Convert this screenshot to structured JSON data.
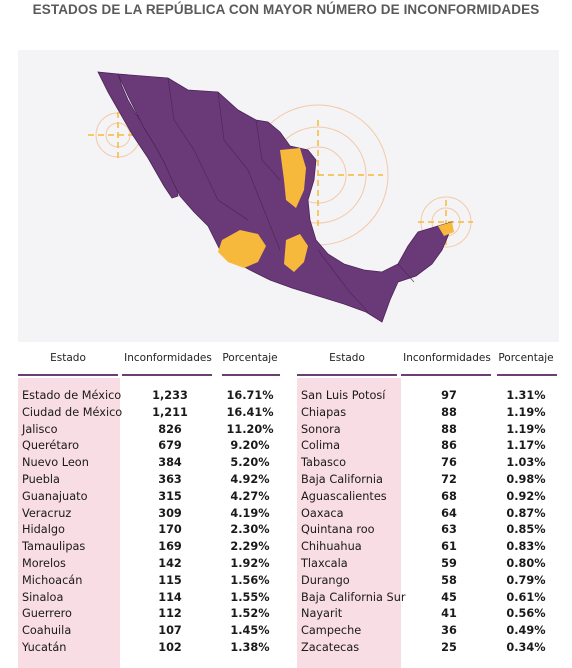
{
  "title": "ESTADOS DE LA REPÚBLICA CON MAYOR NÚMERO DE INCONFORMIDADES",
  "colors": {
    "map_purple": "#6a3a78",
    "map_purple_dark": "#4a2458",
    "highlight_yellow": "#f6b93b",
    "row_pink": "#f8dde4",
    "header_line": "#6b3f72",
    "map_bg": "#f4f3f5"
  },
  "table_headers": {
    "estado": "Estado",
    "inconformidades": "Inconformidades",
    "porcentaje": "Porcentaje"
  },
  "chart_data": {
    "type": "table",
    "columns": [
      "Estado",
      "Inconformidades",
      "Porcentaje"
    ],
    "rows_left": [
      [
        "Estado de México",
        "1,233",
        "16.71%"
      ],
      [
        "Ciudad de México",
        "1,211",
        "16.41%"
      ],
      [
        "Jalisco",
        "826",
        "11.20%"
      ],
      [
        "Querétaro",
        "679",
        "9.20%"
      ],
      [
        "Nuevo Leon",
        "384",
        "5.20%"
      ],
      [
        "Puebla",
        "363",
        "4.92%"
      ],
      [
        "Guanajuato",
        "315",
        "4.27%"
      ],
      [
        "Veracruz",
        "309",
        "4.19%"
      ],
      [
        "Hidalgo",
        "170",
        "2.30%"
      ],
      [
        "Tamaulipas",
        "169",
        "2.29%"
      ],
      [
        "Morelos",
        "142",
        "1.92%"
      ],
      [
        "Michoacán",
        "115",
        "1.56%"
      ],
      [
        "Sinaloa",
        "114",
        "1.55%"
      ],
      [
        "Guerrero",
        "112",
        "1.52%"
      ],
      [
        "Coahuila",
        "107",
        "1.45%"
      ],
      [
        "Yucatán",
        "102",
        "1.38%"
      ]
    ],
    "rows_right": [
      [
        "San Luis Potosí",
        "97",
        "1.31%"
      ],
      [
        "Chiapas",
        "88",
        "1.19%"
      ],
      [
        "Sonora",
        "88",
        "1.19%"
      ],
      [
        "Colima",
        "86",
        "1.17%"
      ],
      [
        "Tabasco",
        "76",
        "1.03%"
      ],
      [
        "Baja California",
        "72",
        "0.98%"
      ],
      [
        "Aguascalientes",
        "68",
        "0.92%"
      ],
      [
        "Oaxaca",
        "64",
        "0.87%"
      ],
      [
        "Quintana roo",
        "63",
        "0.85%"
      ],
      [
        "Chihuahua",
        "61",
        "0.83%"
      ],
      [
        "Tlaxcala",
        "59",
        "0.80%"
      ],
      [
        "Durango",
        "58",
        "0.79%"
      ],
      [
        "Baja California Sur",
        "45",
        "0.61%"
      ],
      [
        "Nayarit",
        "41",
        "0.56%"
      ],
      [
        "Campeche",
        "36",
        "0.49%"
      ],
      [
        "Zacatecas",
        "25",
        "0.34%"
      ]
    ]
  }
}
